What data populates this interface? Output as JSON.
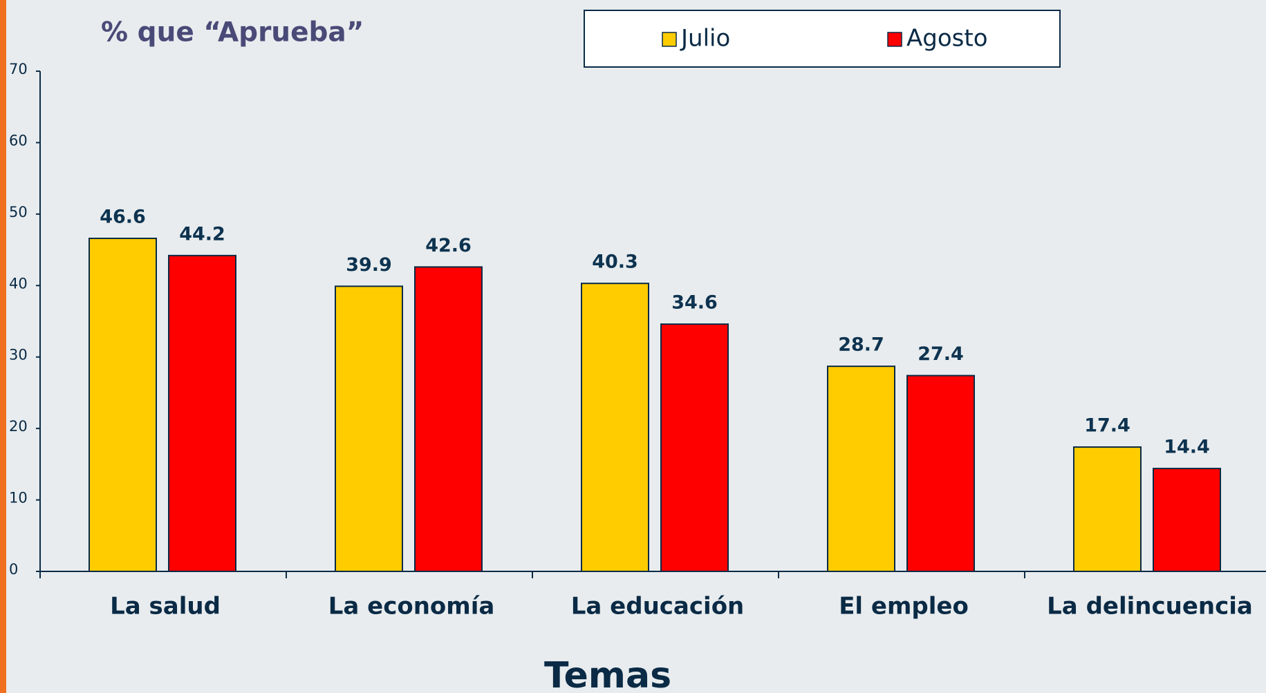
{
  "chart_data": {
    "type": "bar",
    "title": "% que “Aprueba”",
    "x_label": "Temas",
    "categories": [
      "La salud",
      "La economía",
      "La educación",
      "El empleo",
      "La delincuencia"
    ],
    "series": [
      {
        "name": "Julio",
        "color": "#ffcc00",
        "values": [
          46.6,
          39.9,
          40.3,
          28.7,
          17.4
        ]
      },
      {
        "name": "Agosto",
        "color": "#ff0000",
        "values": [
          44.2,
          42.6,
          34.6,
          27.4,
          14.4
        ]
      }
    ],
    "ylim": [
      0,
      70
    ],
    "yticks": [
      0,
      10,
      20,
      30,
      40,
      50,
      60,
      70
    ],
    "legend": "top"
  }
}
